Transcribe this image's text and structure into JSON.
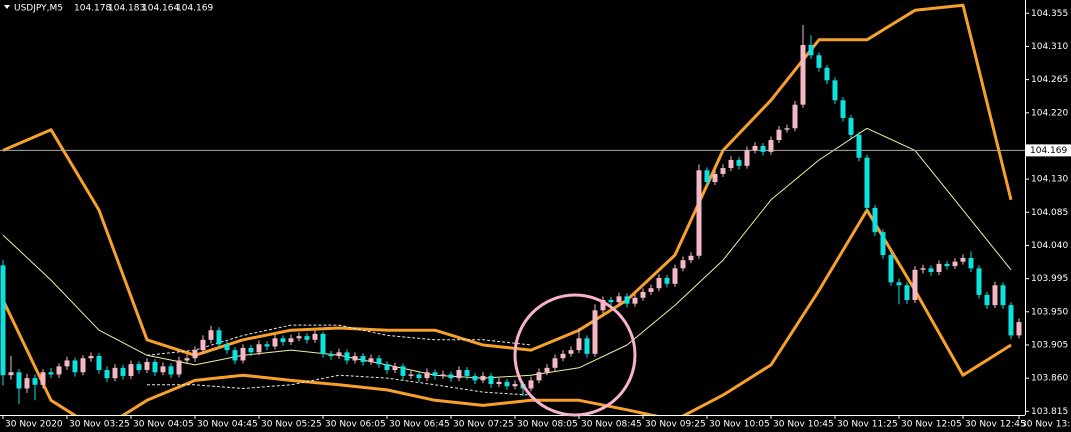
{
  "chart_data": {
    "type": "candlestick",
    "title": "USDJPY,M5",
    "header_prices": [
      104.178,
      104.183,
      104.164,
      104.169
    ],
    "current_price": 104.169,
    "up_color": "#f5b8c6",
    "down_color": "#11e0e0",
    "ylim": [
      103.81,
      104.373
    ],
    "yticks": [
      104.355,
      {
        "value": 104.31,
        "label": "104.310"
      },
      104.265,
      {
        "value": 104.22,
        "label": "104.220"
      },
      {
        "value": 104.13,
        "label": "104.130"
      },
      104.085,
      {
        "value": 104.04,
        "label": "104.040"
      },
      103.995,
      {
        "value": 103.95,
        "label": "103.950"
      },
      103.905,
      {
        "value": 103.86,
        "label": "103.860"
      },
      103.815
    ],
    "categories": [
      "30 Nov 2020",
      null,
      null,
      null,
      null,
      null,
      null,
      null,
      "30 Nov 03:25",
      null,
      null,
      null,
      null,
      null,
      null,
      null,
      "30 Nov 04:05",
      null,
      null,
      null,
      null,
      null,
      null,
      null,
      "30 Nov 04:45",
      null,
      null,
      null,
      null,
      null,
      null,
      null,
      "30 Nov 05:25",
      null,
      null,
      null,
      null,
      null,
      null,
      null,
      "30 Nov 06:05",
      null,
      null,
      null,
      null,
      null,
      null,
      null,
      "30 Nov 06:45",
      null,
      null,
      null,
      null,
      null,
      null,
      null,
      "30 Nov 07:25",
      null,
      null,
      null,
      null,
      null,
      null,
      null,
      "30 Nov 08:05",
      null,
      null,
      null,
      null,
      null,
      null,
      null,
      "30 Nov 08:45",
      null,
      null,
      null,
      null,
      null,
      null,
      null,
      "30 Nov 09:25",
      null,
      null,
      null,
      null,
      null,
      null,
      null,
      "30 Nov 10:05",
      null,
      null,
      null,
      null,
      null,
      null,
      null,
      "30 Nov 10:45",
      null,
      null,
      null,
      null,
      null,
      null,
      null,
      "30 Nov 11:25",
      null,
      null,
      null,
      null,
      null,
      null,
      null,
      "30 Nov 12:05",
      null,
      null,
      null,
      null,
      null,
      null,
      null,
      "30 Nov 12:45",
      null,
      null,
      null,
      null,
      null,
      null,
      "30 Nov 13:"
    ],
    "candles": {
      "open": [
        104.013,
        103.864,
        103.868,
        103.846,
        103.86,
        103.851,
        103.868,
        103.865,
        103.876,
        103.884,
        103.868,
        103.887,
        103.89,
        103.871,
        103.86,
        103.874,
        103.863,
        103.879,
        103.871,
        103.882,
        103.868,
        103.876,
        103.865,
        103.884,
        103.887,
        103.898,
        103.912,
        103.925,
        103.906,
        103.898,
        103.884,
        103.901,
        103.895,
        103.906,
        103.903,
        103.914,
        103.909,
        103.914,
        103.917,
        103.912,
        103.92,
        103.893,
        103.89,
        103.895,
        103.884,
        103.89,
        103.882,
        103.887,
        103.879,
        103.871,
        103.876,
        103.863,
        103.865,
        103.86,
        103.868,
        103.863,
        103.865,
        103.86,
        103.871,
        103.863,
        103.857,
        103.863,
        103.852,
        103.855,
        103.849,
        103.852,
        103.846,
        103.857,
        103.868,
        103.874,
        103.887,
        103.893,
        103.898,
        103.914,
        103.893,
        103.952,
        103.966,
        103.963,
        103.971,
        103.961,
        103.969,
        103.977,
        103.982,
        103.996,
        103.988,
        104.009,
        104.02,
        104.026,
        104.142,
        104.126,
        104.137,
        104.145,
        104.156,
        104.148,
        104.169,
        104.175,
        104.167,
        104.183,
        104.197,
        104.199,
        104.231,
        104.312,
        104.298,
        104.281,
        104.264,
        104.237,
        104.213,
        104.19,
        104.159,
        104.091,
        104.058,
        104.027,
        103.99,
        103.986,
        103.966,
        104.007,
        104.009,
        104.004,
        104.015,
        104.012,
        104.018,
        104.023,
        104.009,
        103.973,
        103.959,
        103.986,
        103.959,
        103.918
      ],
      "high": [
        104.02,
        103.89,
        103.872,
        103.866,
        103.865,
        103.872,
        103.874,
        103.88,
        103.889,
        103.888,
        103.891,
        103.895,
        103.894,
        103.876,
        103.879,
        103.878,
        103.884,
        103.883,
        103.887,
        103.886,
        103.881,
        103.88,
        103.889,
        103.892,
        103.903,
        103.918,
        103.931,
        103.929,
        103.91,
        103.902,
        103.906,
        103.905,
        103.911,
        103.91,
        103.919,
        103.918,
        103.919,
        103.922,
        103.921,
        103.925,
        103.923,
        103.897,
        103.9,
        103.899,
        103.895,
        103.894,
        103.892,
        103.891,
        103.883,
        103.881,
        103.88,
        103.87,
        103.869,
        103.873,
        103.872,
        103.87,
        103.869,
        103.876,
        103.875,
        103.867,
        103.868,
        103.867,
        103.86,
        103.859,
        103.857,
        103.856,
        103.862,
        103.873,
        103.879,
        103.892,
        103.898,
        103.903,
        103.928,
        103.918,
        103.96,
        103.971,
        103.97,
        103.976,
        103.975,
        103.974,
        103.982,
        103.987,
        104.001,
        104.0,
        104.014,
        104.025,
        104.031,
        104.15,
        104.146,
        104.142,
        104.15,
        104.161,
        104.16,
        104.174,
        104.18,
        104.179,
        104.188,
        104.202,
        104.204,
        104.236,
        104.339,
        104.325,
        104.302,
        104.285,
        104.268,
        104.241,
        104.217,
        104.194,
        104.163,
        104.095,
        104.062,
        104.031,
        103.995,
        103.99,
        104.012,
        104.014,
        104.013,
        104.02,
        104.019,
        104.023,
        104.028,
        104.032,
        104.013,
        103.977,
        103.991,
        103.99,
        103.963,
        103.941
      ],
      "low": [
        103.85,
        103.858,
        103.825,
        103.84,
        103.83,
        103.846,
        103.86,
        103.86,
        103.871,
        103.862,
        103.864,
        103.882,
        103.866,
        103.855,
        103.856,
        103.858,
        103.859,
        103.866,
        103.867,
        103.863,
        103.864,
        103.86,
        103.861,
        103.879,
        103.882,
        103.893,
        103.907,
        103.901,
        103.893,
        103.879,
        103.88,
        103.89,
        103.891,
        103.898,
        103.899,
        103.904,
        103.905,
        103.91,
        103.907,
        103.908,
        103.888,
        103.885,
        103.886,
        103.879,
        103.88,
        103.877,
        103.878,
        103.874,
        103.866,
        103.867,
        103.858,
        103.859,
        103.855,
        103.856,
        103.858,
        103.859,
        103.855,
        103.856,
        103.858,
        103.852,
        103.853,
        103.847,
        103.848,
        103.844,
        103.845,
        103.836,
        103.842,
        103.853,
        103.864,
        103.87,
        103.883,
        103.889,
        103.894,
        103.888,
        103.889,
        103.948,
        103.958,
        103.959,
        103.956,
        103.957,
        103.965,
        103.973,
        103.978,
        103.983,
        103.984,
        104.005,
        104.016,
        104.022,
        104.121,
        104.122,
        104.133,
        104.141,
        104.143,
        104.144,
        104.165,
        104.162,
        104.163,
        104.179,
        104.193,
        104.195,
        104.227,
        104.293,
        104.276,
        104.259,
        104.232,
        104.208,
        104.185,
        104.154,
        104.086,
        104.053,
        104.022,
        103.985,
        103.96,
        103.961,
        103.962,
        104.002,
        103.999,
        104.0,
        104.007,
        104.008,
        104.014,
        104.004,
        103.968,
        103.954,
        103.955,
        103.954,
        103.913,
        103.914
      ],
      "close": [
        103.864,
        103.868,
        103.846,
        103.86,
        103.851,
        103.868,
        103.865,
        103.876,
        103.884,
        103.868,
        103.887,
        103.89,
        103.871,
        103.86,
        103.874,
        103.863,
        103.879,
        103.871,
        103.882,
        103.868,
        103.876,
        103.865,
        103.884,
        103.887,
        103.898,
        103.912,
        103.925,
        103.906,
        103.898,
        103.884,
        103.901,
        103.895,
        103.906,
        103.903,
        103.914,
        103.909,
        103.914,
        103.917,
        103.912,
        103.92,
        103.893,
        103.89,
        103.895,
        103.884,
        103.89,
        103.882,
        103.887,
        103.879,
        103.871,
        103.876,
        103.863,
        103.865,
        103.86,
        103.868,
        103.863,
        103.865,
        103.86,
        103.871,
        103.863,
        103.857,
        103.863,
        103.852,
        103.855,
        103.849,
        103.852,
        103.846,
        103.857,
        103.868,
        103.874,
        103.887,
        103.893,
        103.898,
        103.914,
        103.893,
        103.952,
        103.966,
        103.963,
        103.971,
        103.961,
        103.969,
        103.977,
        103.982,
        103.996,
        103.988,
        104.009,
        104.02,
        104.026,
        104.142,
        104.126,
        104.137,
        104.145,
        104.156,
        104.148,
        104.169,
        104.175,
        104.167,
        104.183,
        104.197,
        104.199,
        104.231,
        104.312,
        104.298,
        104.281,
        104.264,
        104.237,
        104.213,
        104.19,
        104.159,
        104.091,
        104.058,
        104.027,
        103.99,
        103.986,
        103.966,
        104.007,
        104.009,
        104.004,
        104.015,
        104.012,
        104.018,
        104.023,
        104.009,
        103.973,
        103.959,
        103.986,
        103.959,
        103.918,
        103.936
      ]
    },
    "series": [
      {
        "color": "#f7a12a",
        "dash": false,
        "width": 3,
        "x": [
          0,
          6,
          12,
          18,
          24,
          30,
          36,
          42,
          48,
          54,
          60,
          66,
          72,
          78,
          84,
          90,
          96,
          102,
          108,
          114,
          120,
          126
        ],
        "values": [
          104.169,
          104.197,
          104.088,
          103.912,
          103.891,
          103.912,
          103.925,
          103.928,
          103.925,
          103.925,
          103.905,
          103.898,
          103.925,
          103.966,
          104.027,
          104.169,
          104.237,
          104.319,
          104.319,
          104.359,
          104.366,
          104.102
        ]
      },
      {
        "color": "#f0f0a0",
        "dash": false,
        "width": 1,
        "x": [
          0,
          6,
          12,
          18,
          24,
          30,
          36,
          42,
          48,
          54,
          60,
          66,
          72,
          78,
          84,
          90,
          96,
          102,
          108,
          114,
          120,
          126
        ],
        "values": [
          104.054,
          103.993,
          103.925,
          103.891,
          103.878,
          103.891,
          103.898,
          103.891,
          103.878,
          103.864,
          103.86,
          103.864,
          103.874,
          103.905,
          103.959,
          104.02,
          104.102,
          104.156,
          104.199,
          104.169,
          104.088,
          104.007
        ]
      },
      {
        "color": "#f7a12a",
        "dash": false,
        "width": 3,
        "x": [
          0,
          6,
          12,
          18,
          24,
          30,
          36,
          42,
          48,
          54,
          60,
          66,
          72,
          78,
          84,
          90,
          96,
          102,
          108,
          114,
          120,
          126
        ],
        "values": [
          103.966,
          103.83,
          103.789,
          103.83,
          103.857,
          103.864,
          103.857,
          103.851,
          103.844,
          103.83,
          103.823,
          103.83,
          103.83,
          103.817,
          103.803,
          103.837,
          103.878,
          103.979,
          104.088,
          103.979,
          103.864,
          103.905
        ]
      },
      {
        "color": "#e8e8e8",
        "dash": true,
        "width": 1,
        "x": [
          18,
          24,
          30,
          36,
          42,
          48,
          54,
          60,
          66
        ],
        "values": [
          103.891,
          103.898,
          103.918,
          103.932,
          103.932,
          103.918,
          103.912,
          103.912,
          103.905
        ]
      },
      {
        "color": "#e8e8e8",
        "dash": true,
        "width": 1,
        "x": [
          18,
          24,
          30,
          36,
          42,
          48,
          54,
          60,
          66
        ],
        "values": [
          103.851,
          103.851,
          103.846,
          103.851,
          103.864,
          103.86,
          103.851,
          103.841,
          103.837
        ]
      }
    ]
  }
}
